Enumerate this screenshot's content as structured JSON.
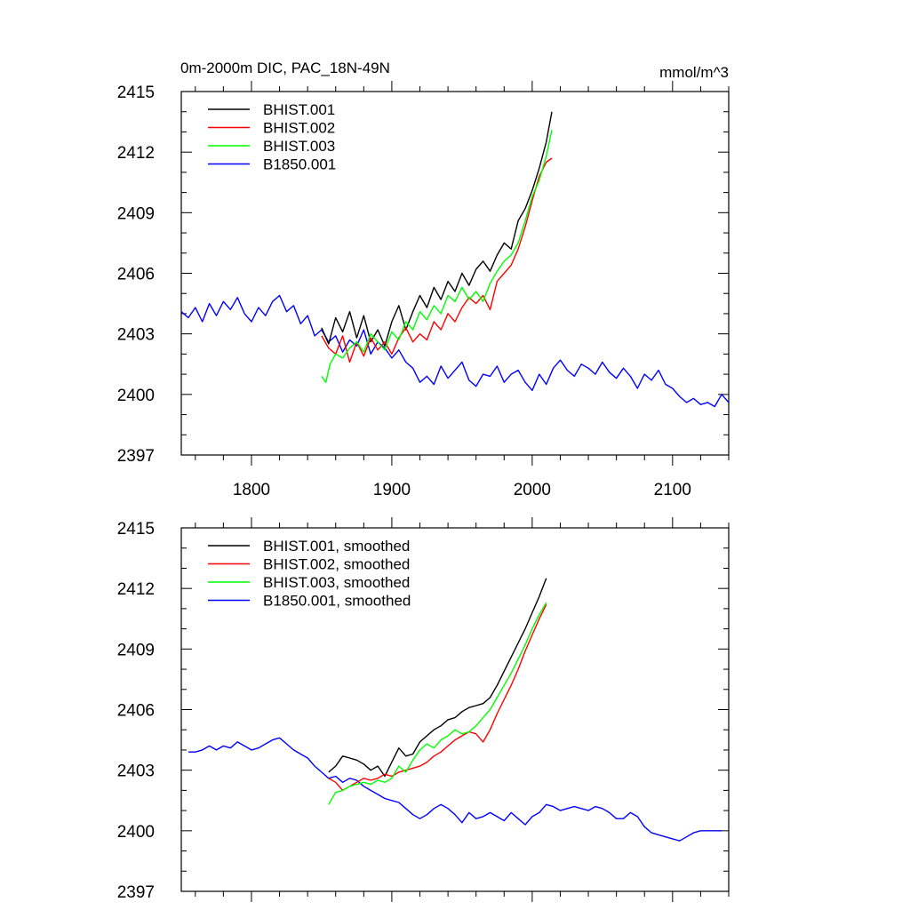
{
  "figure": {
    "title": "0m-2000m DIC, PAC_18N-49N",
    "units": "mmol/m^3"
  },
  "chart_data": [
    {
      "type": "line",
      "title": "0m-2000m DIC, PAC_18N-49N",
      "units": "mmol/m^3",
      "xlim": [
        1750,
        2140
      ],
      "ylim": [
        2397,
        2415
      ],
      "x_ticks": [
        1800,
        1900,
        2000,
        2100
      ],
      "x_tick_labels": [
        "1800",
        "1900",
        "2000",
        "2100"
      ],
      "y_ticks": [
        2397,
        2400,
        2403,
        2406,
        2409,
        2412,
        2415
      ],
      "y_tick_labels": [
        "2397",
        "2400",
        "2403",
        "2406",
        "2409",
        "2412",
        "2415"
      ],
      "grid": false,
      "legend_position": "top-left",
      "series": [
        {
          "name": "BHIST.001",
          "color": "#000000",
          "x": [
            1850,
            1855,
            1860,
            1865,
            1870,
            1875,
            1880,
            1885,
            1890,
            1895,
            1900,
            1905,
            1910,
            1915,
            1920,
            1925,
            1930,
            1935,
            1940,
            1945,
            1950,
            1955,
            1960,
            1965,
            1970,
            1975,
            1980,
            1985,
            1990,
            1995,
            2000,
            2005,
            2010,
            2014
          ],
          "values": [
            2403.3,
            2402.5,
            2403.8,
            2403.1,
            2404.1,
            2402.8,
            2403.9,
            2402.6,
            2403.2,
            2402.4,
            2403.6,
            2404.4,
            2403.2,
            2404.1,
            2404.9,
            2404.3,
            2405.3,
            2404.7,
            2405.6,
            2405.1,
            2406.0,
            2405.4,
            2406.2,
            2406.6,
            2406.1,
            2406.9,
            2407.5,
            2407.2,
            2408.6,
            2409.2,
            2410.1,
            2411.2,
            2412.5,
            2414.0
          ]
        },
        {
          "name": "BHIST.002",
          "color": "#ff0000",
          "x": [
            1850,
            1855,
            1860,
            1865,
            1870,
            1875,
            1880,
            1885,
            1890,
            1895,
            1900,
            1905,
            1910,
            1915,
            1920,
            1925,
            1930,
            1935,
            1940,
            1945,
            1950,
            1955,
            1960,
            1965,
            1970,
            1975,
            1980,
            1985,
            1990,
            1995,
            2000,
            2005,
            2010,
            2014
          ],
          "values": [
            2402.9,
            2402.3,
            2402.0,
            2402.9,
            2401.6,
            2402.6,
            2401.9,
            2402.8,
            2402.2,
            2402.6,
            2402.0,
            2402.8,
            2403.3,
            2402.6,
            2403.0,
            2402.7,
            2403.6,
            2403.2,
            2404.0,
            2403.6,
            2404.3,
            2404.8,
            2404.5,
            2404.9,
            2404.2,
            2405.6,
            2406.0,
            2406.4,
            2407.2,
            2408.3,
            2409.6,
            2410.8,
            2411.5,
            2411.7
          ]
        },
        {
          "name": "BHIST.003",
          "color": "#00ff00",
          "x": [
            1850,
            1853,
            1856,
            1860,
            1865,
            1870,
            1875,
            1880,
            1885,
            1890,
            1895,
            1900,
            1905,
            1910,
            1915,
            1920,
            1925,
            1930,
            1935,
            1940,
            1945,
            1950,
            1955,
            1960,
            1965,
            1970,
            1975,
            1980,
            1985,
            1990,
            1995,
            2000,
            2005,
            2010,
            2014
          ],
          "values": [
            2400.9,
            2400.6,
            2401.5,
            2402.0,
            2401.8,
            2402.3,
            2402.6,
            2402.1,
            2403.0,
            2402.6,
            2402.2,
            2403.1,
            2402.7,
            2403.6,
            2403.2,
            2404.1,
            2403.7,
            2404.4,
            2404.0,
            2404.9,
            2404.6,
            2405.3,
            2404.7,
            2405.1,
            2404.6,
            2405.5,
            2406.1,
            2406.6,
            2406.9,
            2407.5,
            2408.6,
            2409.8,
            2410.6,
            2411.8,
            2413.1
          ]
        },
        {
          "name": "B1850.001",
          "color": "#0000ff",
          "x": [
            1750,
            1755,
            1760,
            1765,
            1770,
            1775,
            1780,
            1785,
            1790,
            1795,
            1800,
            1805,
            1810,
            1815,
            1820,
            1825,
            1830,
            1835,
            1840,
            1845,
            1850,
            1855,
            1860,
            1865,
            1870,
            1875,
            1880,
            1885,
            1890,
            1895,
            1900,
            1905,
            1910,
            1915,
            1920,
            1925,
            1930,
            1935,
            1940,
            1945,
            1950,
            1955,
            1960,
            1965,
            1970,
            1975,
            1980,
            1985,
            1990,
            1995,
            2000,
            2005,
            2010,
            2015,
            2020,
            2025,
            2030,
            2035,
            2040,
            2045,
            2050,
            2055,
            2060,
            2065,
            2070,
            2075,
            2080,
            2085,
            2090,
            2095,
            2100,
            2105,
            2110,
            2115,
            2120,
            2125,
            2130,
            2135,
            2140
          ],
          "values": [
            2404.1,
            2403.8,
            2404.3,
            2403.6,
            2404.5,
            2403.9,
            2404.6,
            2404.2,
            2404.8,
            2404.0,
            2403.6,
            2404.3,
            2403.9,
            2404.6,
            2404.9,
            2404.1,
            2404.4,
            2403.5,
            2403.9,
            2402.9,
            2403.2,
            2402.6,
            2402.9,
            2402.1,
            2402.7,
            2402.4,
            2403.2,
            2402.0,
            2402.6,
            2402.3,
            2401.8,
            2402.2,
            2401.6,
            2401.3,
            2400.6,
            2400.9,
            2400.5,
            2401.4,
            2400.8,
            2401.2,
            2401.6,
            2400.7,
            2400.4,
            2401.0,
            2400.9,
            2401.4,
            2400.6,
            2401.0,
            2401.2,
            2400.6,
            2400.2,
            2401.0,
            2400.5,
            2401.3,
            2401.7,
            2401.2,
            2400.9,
            2401.5,
            2401.3,
            2401.0,
            2401.6,
            2401.1,
            2400.8,
            2401.3,
            2400.9,
            2400.3,
            2401.0,
            2400.7,
            2401.2,
            2400.5,
            2400.3,
            2399.9,
            2399.6,
            2399.8,
            2399.5,
            2399.6,
            2399.4,
            2400.0,
            2399.6
          ]
        }
      ]
    },
    {
      "type": "line",
      "xlim": [
        1750,
        2140
      ],
      "ylim": [
        2397,
        2415
      ],
      "x_ticks": [
        1800,
        1900,
        2000,
        2100
      ],
      "y_ticks": [
        2397,
        2400,
        2403,
        2406,
        2409,
        2412,
        2415
      ],
      "y_tick_labels": [
        "2397",
        "2400",
        "2403",
        "2406",
        "2409",
        "2412",
        "2415"
      ],
      "grid": false,
      "legend_position": "top-left",
      "series": [
        {
          "name": "BHIST.001, smoothed",
          "color": "#000000",
          "x": [
            1855,
            1860,
            1865,
            1870,
            1875,
            1880,
            1885,
            1890,
            1895,
            1900,
            1905,
            1910,
            1915,
            1920,
            1925,
            1930,
            1935,
            1940,
            1945,
            1950,
            1955,
            1960,
            1965,
            1970,
            1975,
            1980,
            1985,
            1990,
            1995,
            2000,
            2005,
            2010
          ],
          "values": [
            2402.9,
            2403.2,
            2403.7,
            2403.6,
            2403.5,
            2403.3,
            2403.0,
            2403.2,
            2402.7,
            2403.4,
            2404.1,
            2403.7,
            2403.8,
            2404.4,
            2404.7,
            2405.0,
            2405.2,
            2405.5,
            2405.6,
            2405.9,
            2406.1,
            2406.2,
            2406.3,
            2406.6,
            2407.2,
            2407.9,
            2408.6,
            2409.3,
            2410.0,
            2410.8,
            2411.6,
            2412.5
          ]
        },
        {
          "name": "BHIST.002, smoothed",
          "color": "#ff0000",
          "x": [
            1855,
            1860,
            1865,
            1870,
            1875,
            1880,
            1885,
            1890,
            1895,
            1900,
            1905,
            1910,
            1915,
            1920,
            1925,
            1930,
            1935,
            1940,
            1945,
            1950,
            1955,
            1960,
            1965,
            1970,
            1975,
            1980,
            1985,
            1990,
            1995,
            2000,
            2005,
            2010
          ],
          "values": [
            2402.6,
            2402.4,
            2402.0,
            2402.2,
            2402.4,
            2402.6,
            2402.5,
            2402.6,
            2402.8,
            2402.7,
            2402.9,
            2403.0,
            2403.1,
            2403.2,
            2403.4,
            2403.7,
            2403.9,
            2404.2,
            2404.5,
            2404.7,
            2404.9,
            2404.8,
            2404.4,
            2405.0,
            2405.8,
            2406.5,
            2407.2,
            2408.0,
            2408.9,
            2409.7,
            2410.5,
            2411.2
          ]
        },
        {
          "name": "BHIST.003, smoothed",
          "color": "#00ff00",
          "x": [
            1855,
            1860,
            1865,
            1870,
            1875,
            1880,
            1885,
            1890,
            1895,
            1900,
            1905,
            1910,
            1915,
            1920,
            1925,
            1930,
            1935,
            1940,
            1945,
            1950,
            1955,
            1960,
            1965,
            1970,
            1975,
            1980,
            1985,
            1990,
            1995,
            2000,
            2005,
            2010
          ],
          "values": [
            2401.3,
            2401.9,
            2402.0,
            2402.2,
            2402.3,
            2402.4,
            2402.3,
            2402.5,
            2402.4,
            2402.6,
            2403.2,
            2402.9,
            2403.5,
            2404.0,
            2404.3,
            2404.1,
            2404.5,
            2404.7,
            2405.0,
            2404.8,
            2404.9,
            2405.2,
            2405.6,
            2406.0,
            2406.6,
            2407.2,
            2407.8,
            2408.5,
            2409.2,
            2410.0,
            2410.7,
            2411.3
          ]
        },
        {
          "name": "B1850.001, smoothed",
          "color": "#0000ff",
          "x": [
            1755,
            1760,
            1765,
            1770,
            1775,
            1780,
            1785,
            1790,
            1795,
            1800,
            1805,
            1810,
            1815,
            1820,
            1825,
            1830,
            1835,
            1840,
            1845,
            1850,
            1855,
            1860,
            1865,
            1870,
            1875,
            1880,
            1885,
            1890,
            1895,
            1900,
            1905,
            1910,
            1915,
            1920,
            1925,
            1930,
            1935,
            1940,
            1945,
            1950,
            1955,
            1960,
            1965,
            1970,
            1975,
            1980,
            1985,
            1990,
            1995,
            2000,
            2005,
            2010,
            2015,
            2020,
            2025,
            2030,
            2035,
            2040,
            2045,
            2050,
            2055,
            2060,
            2065,
            2070,
            2075,
            2080,
            2085,
            2090,
            2095,
            2100,
            2105,
            2110,
            2115,
            2120,
            2125,
            2130,
            2135
          ],
          "values": [
            2403.9,
            2403.9,
            2404.0,
            2404.2,
            2404.0,
            2404.2,
            2404.1,
            2404.4,
            2404.2,
            2404.0,
            2404.1,
            2404.3,
            2404.5,
            2404.6,
            2404.3,
            2404.0,
            2403.8,
            2403.6,
            2403.2,
            2402.9,
            2402.6,
            2402.7,
            2402.4,
            2402.6,
            2402.5,
            2402.2,
            2402.0,
            2401.8,
            2401.6,
            2401.5,
            2401.4,
            2401.1,
            2400.8,
            2400.6,
            2400.8,
            2401.1,
            2401.3,
            2401.1,
            2400.8,
            2400.4,
            2400.9,
            2400.6,
            2400.7,
            2400.9,
            2400.7,
            2400.5,
            2400.9,
            2400.6,
            2400.3,
            2400.7,
            2400.9,
            2401.3,
            2401.2,
            2401.0,
            2401.1,
            2401.2,
            2401.1,
            2401.0,
            2401.2,
            2401.1,
            2400.9,
            2400.6,
            2400.6,
            2400.9,
            2400.7,
            2400.2,
            2399.9,
            2399.8,
            2399.7,
            2399.6,
            2399.5,
            2399.7,
            2399.9,
            2400.0,
            2400.0,
            2400.0,
            2400.0
          ]
        }
      ]
    }
  ]
}
